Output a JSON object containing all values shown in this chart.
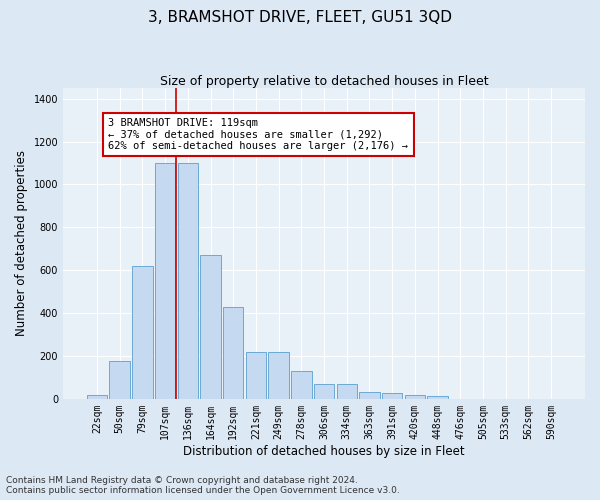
{
  "title": "3, BRAMSHOT DRIVE, FLEET, GU51 3QD",
  "subtitle": "Size of property relative to detached houses in Fleet",
  "xlabel": "Distribution of detached houses by size in Fleet",
  "ylabel": "Number of detached properties",
  "footer_line1": "Contains HM Land Registry data © Crown copyright and database right 2024.",
  "footer_line2": "Contains public sector information licensed under the Open Government Licence v3.0.",
  "bar_labels": [
    "22sqm",
    "50sqm",
    "79sqm",
    "107sqm",
    "136sqm",
    "164sqm",
    "192sqm",
    "221sqm",
    "249sqm",
    "278sqm",
    "306sqm",
    "334sqm",
    "363sqm",
    "391sqm",
    "420sqm",
    "448sqm",
    "476sqm",
    "505sqm",
    "533sqm",
    "562sqm",
    "590sqm"
  ],
  "bar_values": [
    20,
    175,
    620,
    1100,
    1100,
    670,
    430,
    220,
    220,
    130,
    70,
    70,
    30,
    25,
    20,
    15,
    0,
    0,
    0,
    0,
    0
  ],
  "bar_color": "#c5d9f0",
  "bar_edge_color": "#6aaad4",
  "vline_index": 3.5,
  "annotation_text": "3 BRAMSHOT DRIVE: 119sqm\n← 37% of detached houses are smaller (1,292)\n62% of semi-detached houses are larger (2,176) →",
  "annotation_box_color": "#ffffff",
  "annotation_box_edge_color": "#cc0000",
  "ylim": [
    0,
    1450
  ],
  "yticks": [
    0,
    200,
    400,
    600,
    800,
    1000,
    1200,
    1400
  ],
  "background_color": "#dde8f5",
  "plot_bg_color": "#e8f0f8",
  "grid_color": "#ffffff",
  "vline_color": "#cc0000",
  "title_fontsize": 11,
  "subtitle_fontsize": 9,
  "xlabel_fontsize": 8.5,
  "ylabel_fontsize": 8.5,
  "tick_fontsize": 7,
  "footer_fontsize": 6.5,
  "annot_fontsize": 7.5
}
